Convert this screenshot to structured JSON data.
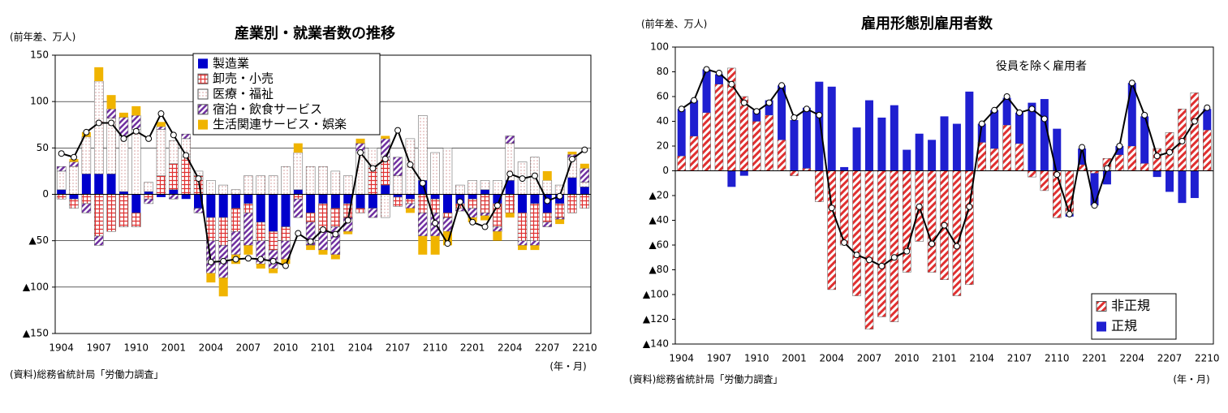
{
  "chart_data": [
    {
      "type": "bar",
      "title": "産業別・就業者数の推移",
      "y_label": "(前年差、万人)",
      "x_label": "(年・月)",
      "source": "(資料)総務省統計局「労働力調査」",
      "categories": [
        "1904",
        null,
        null,
        "1907",
        null,
        null,
        "1910",
        null,
        null,
        "2001",
        null,
        null,
        "2004",
        null,
        null,
        "2007",
        null,
        null,
        "2010",
        null,
        null,
        "2101",
        null,
        null,
        "2104",
        null,
        null,
        "2107",
        null,
        null,
        "2110",
        null,
        null,
        "2201",
        null,
        null,
        "2204",
        null,
        null,
        "2207",
        null,
        null,
        "2210"
      ],
      "ylim": [
        -150,
        150
      ],
      "yticks": [
        {
          "value": -150,
          "label": "▲150"
        },
        {
          "value": -100,
          "label": "▲100"
        },
        {
          "value": -50,
          "label": "▲50"
        },
        0,
        50,
        100,
        150
      ],
      "grid": true,
      "legend": "upper-center",
      "series": [
        {
          "name": "製造業",
          "color": "#0000cc",
          "pattern": "solid",
          "values": [
            5,
            -5,
            22,
            22,
            22,
            3,
            -20,
            3,
            -3,
            5,
            -5,
            -15,
            -25,
            -25,
            -15,
            -10,
            -30,
            -40,
            -35,
            5,
            -20,
            -10,
            -15,
            -10,
            -15,
            -15,
            10,
            -3,
            -5,
            15,
            -5,
            -20,
            -10,
            -5,
            5,
            -10,
            15,
            -20,
            -10,
            -20,
            -10,
            18,
            8
          ]
        },
        {
          "name": "卸売・小売",
          "color": "#e03030",
          "pattern": "cross",
          "values": [
            -5,
            -10,
            -10,
            -45,
            -40,
            -35,
            -15,
            -5,
            20,
            28,
            40,
            20,
            -25,
            -30,
            -25,
            -10,
            -20,
            -20,
            -15,
            -5,
            -10,
            -30,
            -20,
            -15,
            -5,
            30,
            30,
            -10,
            -5,
            -20,
            -15,
            -5,
            -5,
            -10,
            -20,
            -25,
            -20,
            -30,
            -40,
            -10,
            -15,
            -20,
            -15
          ]
        },
        {
          "name": "医療・福祉",
          "color": "#c06060",
          "pattern": "dots",
          "values": [
            20,
            30,
            40,
            100,
            60,
            60,
            70,
            10,
            50,
            25,
            20,
            5,
            15,
            10,
            5,
            20,
            20,
            20,
            30,
            40,
            30,
            30,
            25,
            20,
            45,
            20,
            -25,
            20,
            60,
            70,
            45,
            50,
            10,
            15,
            10,
            15,
            40,
            35,
            40,
            15,
            10,
            20,
            5
          ]
        },
        {
          "name": "宿泊・飲食サービス",
          "color": "#7030a0",
          "pattern": "diagonal",
          "values": [
            5,
            5,
            -10,
            -10,
            10,
            20,
            15,
            -5,
            3,
            -5,
            5,
            -5,
            -35,
            -35,
            -25,
            -35,
            -25,
            -20,
            -20,
            -20,
            -25,
            -20,
            -30,
            -15,
            10,
            -10,
            20,
            20,
            -5,
            -25,
            -25,
            -15,
            -3,
            -10,
            -3,
            -5,
            8,
            -5,
            -5,
            -5,
            -2,
            5,
            15
          ]
        },
        {
          "name": "生活関連サービス・娯楽",
          "color": "#f0b400",
          "pattern": "solid",
          "values": [
            0,
            3,
            5,
            15,
            15,
            5,
            10,
            0,
            5,
            0,
            0,
            0,
            -10,
            -20,
            -10,
            -10,
            -5,
            -5,
            -5,
            10,
            -5,
            -5,
            -5,
            -3,
            5,
            0,
            3,
            0,
            -5,
            -20,
            -20,
            -15,
            0,
            -5,
            -5,
            -10,
            -5,
            -5,
            -5,
            10,
            -5,
            3,
            5
          ]
        }
      ],
      "line": {
        "color": "#000000",
        "values": [
          44,
          40,
          67,
          77,
          77,
          60,
          68,
          60,
          87,
          64,
          42,
          17,
          -73,
          -72,
          -70,
          -69,
          -70,
          -72,
          -77,
          -42,
          -51,
          -38,
          -43,
          -28,
          45,
          28,
          38,
          69,
          32,
          12,
          -31,
          -53,
          -8,
          -30,
          -35,
          -12,
          22,
          17,
          20,
          -7,
          -2,
          38,
          48
        ]
      }
    },
    {
      "type": "bar",
      "title": "雇用形態別雇用者数",
      "y_label": "(前年差、万人)",
      "x_label": "(年・月)",
      "source": "(資料)総務省統計局「労働力調査」",
      "annotation": "役員を除く雇用者",
      "categories": [
        "1904",
        null,
        null,
        "1907",
        null,
        null,
        "1910",
        null,
        null,
        "2001",
        null,
        null,
        "2004",
        null,
        null,
        "2007",
        null,
        null,
        "2010",
        null,
        null,
        "2101",
        null,
        null,
        "2104",
        null,
        null,
        "2107",
        null,
        null,
        "2110",
        null,
        null,
        "2201",
        null,
        null,
        "2204",
        null,
        null,
        "2207",
        null,
        null,
        "2210"
      ],
      "ylim": [
        -140,
        100
      ],
      "yticks": [
        {
          "value": -140,
          "label": "▲140"
        },
        {
          "value": -120,
          "label": "▲120"
        },
        {
          "value": -100,
          "label": "▲100"
        },
        {
          "value": -80,
          "label": "▲80"
        },
        {
          "value": -60,
          "label": "▲60"
        },
        {
          "value": -40,
          "label": "▲40"
        },
        {
          "value": -20,
          "label": "▲20"
        },
        0,
        20,
        40,
        60,
        80,
        100
      ],
      "grid": false,
      "legend": "lower-right",
      "series": [
        {
          "name": "非正規",
          "color": "#e03030",
          "pattern": "diagonal",
          "values": [
            12,
            28,
            47,
            70,
            83,
            60,
            40,
            45,
            25,
            -4,
            2,
            -25,
            -96,
            -60,
            -101,
            -128,
            -118,
            -122,
            -82,
            -57,
            -82,
            -88,
            -101,
            -92,
            23,
            18,
            37,
            22,
            -5,
            -16,
            -38,
            -35,
            5,
            -2,
            10,
            13,
            20,
            6,
            18,
            31,
            50,
            63,
            33
          ]
        },
        {
          "name": "正規",
          "color": "#1f1fd0",
          "pattern": "solid",
          "values": [
            38,
            29,
            35,
            8,
            -13,
            -4,
            9,
            12,
            44,
            41,
            49,
            72,
            68,
            3,
            35,
            57,
            43,
            53,
            17,
            30,
            25,
            44,
            38,
            64,
            15,
            31,
            22,
            25,
            55,
            58,
            34,
            -2,
            13,
            -26,
            -11,
            7,
            51,
            38,
            -5,
            -17,
            -26,
            -22,
            17
          ]
        }
      ],
      "line": {
        "color": "#000000",
        "values": [
          50,
          57,
          82,
          79,
          70,
          55,
          48,
          55,
          69,
          43,
          50,
          45,
          -30,
          -58,
          -68,
          -72,
          -77,
          -70,
          -65,
          -29,
          -59,
          -44,
          -61,
          -29,
          38,
          49,
          60,
          47,
          50,
          42,
          -3,
          -35,
          19,
          -28,
          2,
          20,
          71,
          45,
          12,
          15,
          24,
          40,
          51
        ]
      }
    }
  ]
}
